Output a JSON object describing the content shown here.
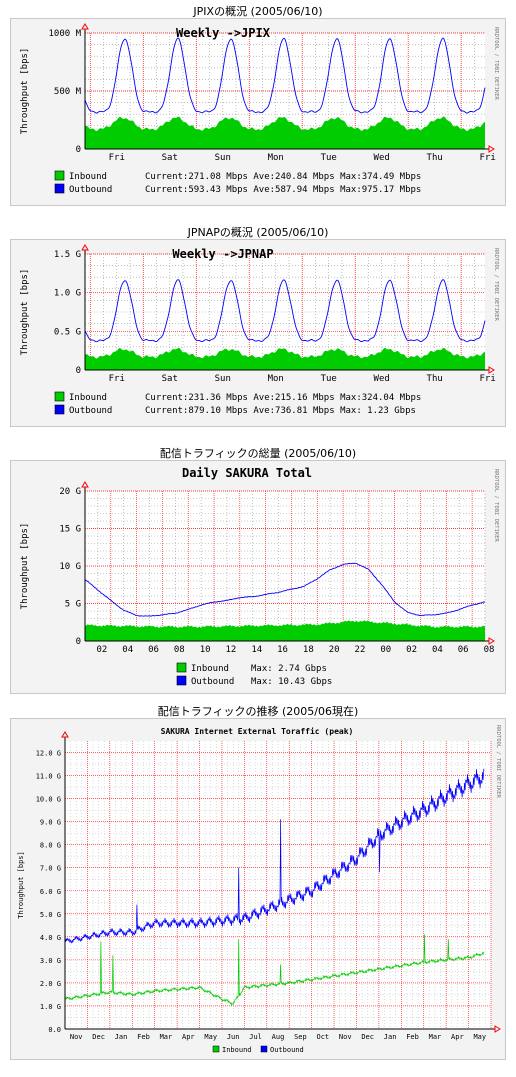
{
  "colors": {
    "inbound": "#00cc00",
    "outbound": "#0000ff",
    "grid_major": "#ff0000",
    "grid_minor": "#000000",
    "background": "#ffffff",
    "panel": "#f3f3f3"
  },
  "side_label": "RRDTOOL / TOBI OETIKER",
  "chart_data": [
    {
      "type": "area",
      "caption": "JPIXの概況 (2005/06/10)",
      "title": "Weekly ->JPIX",
      "ylabel": "Throughput [bps]",
      "ylim": [
        0,
        1000
      ],
      "yticks": [
        {
          "v": 0,
          "label": "0"
        },
        {
          "v": 500,
          "label": "500 M"
        },
        {
          "v": 1000,
          "label": "1000 M"
        }
      ],
      "x_categories": [
        "Fri",
        "Sat",
        "Sun",
        "Mon",
        "Tue",
        "Wed",
        "Thu",
        "Fri"
      ],
      "series": [
        {
          "name": "Inbound",
          "type": "area",
          "base": 170,
          "amp": 100,
          "phase": 0.62,
          "sharp": 1.5
        },
        {
          "name": "Outbound",
          "type": "line",
          "base": 320,
          "amp": 630,
          "phase": 0.65,
          "sharp": 2.6
        }
      ],
      "legend": [
        {
          "name": "Inbound",
          "text": "Current:271.08 Mbps  Ave:240.84 Mbps  Max:374.49 Mbps"
        },
        {
          "name": "Outbound",
          "text": "Current:593.43 Mbps  Ave:587.94 Mbps  Max:975.17 Mbps"
        }
      ]
    },
    {
      "type": "area",
      "caption": "JPNAPの概況 (2005/06/10)",
      "title": "Weekly ->JPNAP",
      "ylabel": "Throughput [bps]",
      "ylim": [
        0,
        1.5
      ],
      "yticks": [
        {
          "v": 0,
          "label": "0"
        },
        {
          "v": 0.5,
          "label": "0.5 G"
        },
        {
          "v": 1.0,
          "label": "1.0 G"
        },
        {
          "v": 1.5,
          "label": "1.5 G"
        }
      ],
      "x_categories": [
        "Fri",
        "Sat",
        "Sun",
        "Mon",
        "Tue",
        "Wed",
        "Thu",
        "Fri"
      ],
      "series": [
        {
          "name": "Inbound",
          "type": "area",
          "base": 0.17,
          "amp": 0.1,
          "phase": 0.62,
          "sharp": 1.5
        },
        {
          "name": "Outbound",
          "type": "line",
          "base": 0.38,
          "amp": 0.78,
          "phase": 0.65,
          "sharp": 2.6
        }
      ],
      "legend": [
        {
          "name": "Inbound",
          "text": "Current:231.36 Mbps  Ave:215.16 Mbps  Max:324.04 Mbps"
        },
        {
          "name": "Outbound",
          "text": "Current:879.10 Mbps  Ave:736.81 Mbps  Max:   1.23 Gbps"
        }
      ]
    },
    {
      "type": "area",
      "caption": "配信トラフィックの総量 (2005/06/10)",
      "title": "Daily SAKURA Total",
      "ylabel": "Throughput [bps]",
      "ylim": [
        0,
        20
      ],
      "yticks": [
        {
          "v": 0,
          "label": "0"
        },
        {
          "v": 5,
          "label": "5 G"
        },
        {
          "v": 10,
          "label": "10 G"
        },
        {
          "v": 15,
          "label": "15 G"
        },
        {
          "v": 20,
          "label": "20 G"
        }
      ],
      "x_labels": [
        "02",
        "04",
        "06",
        "08",
        "10",
        "12",
        "14",
        "16",
        "18",
        "20",
        "22",
        "00",
        "02",
        "04",
        "06",
        "08"
      ],
      "outbound_points": [
        [
          0,
          8.2
        ],
        [
          1,
          6.8
        ],
        [
          2,
          5.4
        ],
        [
          3,
          4.1
        ],
        [
          4,
          3.4
        ],
        [
          5,
          3.3
        ],
        [
          6,
          3.5
        ],
        [
          7,
          3.7
        ],
        [
          8,
          4.2
        ],
        [
          9,
          4.8
        ],
        [
          10,
          5.2
        ],
        [
          11,
          5.4
        ],
        [
          12,
          5.8
        ],
        [
          13,
          5.9
        ],
        [
          14,
          6.2
        ],
        [
          15,
          6.5
        ],
        [
          16,
          6.9
        ],
        [
          17,
          7.3
        ],
        [
          18,
          8.3
        ],
        [
          19,
          9.5
        ],
        [
          20,
          10.2
        ],
        [
          21,
          10.4
        ],
        [
          22,
          9.5
        ],
        [
          23,
          7.5
        ],
        [
          24,
          5.2
        ],
        [
          25,
          3.8
        ],
        [
          26,
          3.4
        ],
        [
          27,
          3.5
        ],
        [
          28,
          3.7
        ],
        [
          29,
          4.2
        ],
        [
          30,
          4.8
        ],
        [
          31,
          5.2
        ]
      ],
      "inbound_points": [
        [
          0,
          2.1
        ],
        [
          3,
          2.0
        ],
        [
          6,
          1.9
        ],
        [
          9,
          1.9
        ],
        [
          12,
          2.0
        ],
        [
          15,
          2.1
        ],
        [
          18,
          2.2
        ],
        [
          21,
          2.7
        ],
        [
          24,
          2.3
        ],
        [
          27,
          1.9
        ],
        [
          31,
          1.9
        ]
      ],
      "legend": [
        {
          "name": "Inbound",
          "text": "Max:   2.74 Gbps"
        },
        {
          "name": "Outbound",
          "text": "Max:  10.43 Gbps"
        }
      ]
    },
    {
      "type": "line",
      "caption": "配信トラフィックの推移 (2005/06現在)",
      "title": "SAKURA Internet External Toraffic (peak)",
      "ylabel": "Throughput [bps]",
      "ylim": [
        0,
        12.5
      ],
      "yticks": [
        {
          "v": 0,
          "label": "0.0"
        },
        {
          "v": 1,
          "label": "1.0 G"
        },
        {
          "v": 2,
          "label": "2.0 G"
        },
        {
          "v": 3,
          "label": "3.0 G"
        },
        {
          "v": 4,
          "label": "4.0 G"
        },
        {
          "v": 5,
          "label": "5.0 G"
        },
        {
          "v": 6,
          "label": "6.0 G"
        },
        {
          "v": 7,
          "label": "7.0 G"
        },
        {
          "v": 8,
          "label": "8.0 G"
        },
        {
          "v": 9,
          "label": "9.0 G"
        },
        {
          "v": 10,
          "label": "10.0 G"
        },
        {
          "v": 11,
          "label": "11.0 G"
        },
        {
          "v": 12,
          "label": "12.0 G"
        }
      ],
      "x_labels": [
        "Nov",
        "Dec",
        "Jan",
        "Feb",
        "Mar",
        "Apr",
        "May",
        "Jun",
        "Jul",
        "Aug",
        "Sep",
        "Oct",
        "Nov",
        "Dec",
        "Jan",
        "Feb",
        "Mar",
        "Apr",
        "May"
      ],
      "outbound_points": [
        [
          0,
          3.8
        ],
        [
          2,
          4.2
        ],
        [
          3,
          4.2
        ],
        [
          4,
          4.6
        ],
        [
          6,
          4.6
        ],
        [
          8,
          4.8
        ],
        [
          9,
          5.2
        ],
        [
          10,
          5.6
        ],
        [
          11,
          6.0
        ],
        [
          12,
          6.7
        ],
        [
          13,
          7.4
        ],
        [
          14,
          8.4
        ],
        [
          15,
          9.0
        ],
        [
          16,
          9.5
        ],
        [
          17,
          10.1
        ],
        [
          18.7,
          11.0
        ]
      ],
      "inbound_points": [
        [
          0,
          1.3
        ],
        [
          2,
          1.6
        ],
        [
          3,
          1.5
        ],
        [
          4,
          1.65
        ],
        [
          6,
          1.8
        ],
        [
          7,
          1.3
        ],
        [
          7.5,
          1.1
        ],
        [
          8,
          1.8
        ],
        [
          10,
          2.0
        ],
        [
          12,
          2.3
        ],
        [
          14,
          2.6
        ],
        [
          16,
          2.9
        ],
        [
          18,
          3.1
        ],
        [
          18.7,
          3.3
        ]
      ],
      "legend": [
        {
          "name": "Inbound",
          "text": "Inbound"
        },
        {
          "name": "Outbound",
          "text": "Outbound"
        }
      ]
    }
  ]
}
